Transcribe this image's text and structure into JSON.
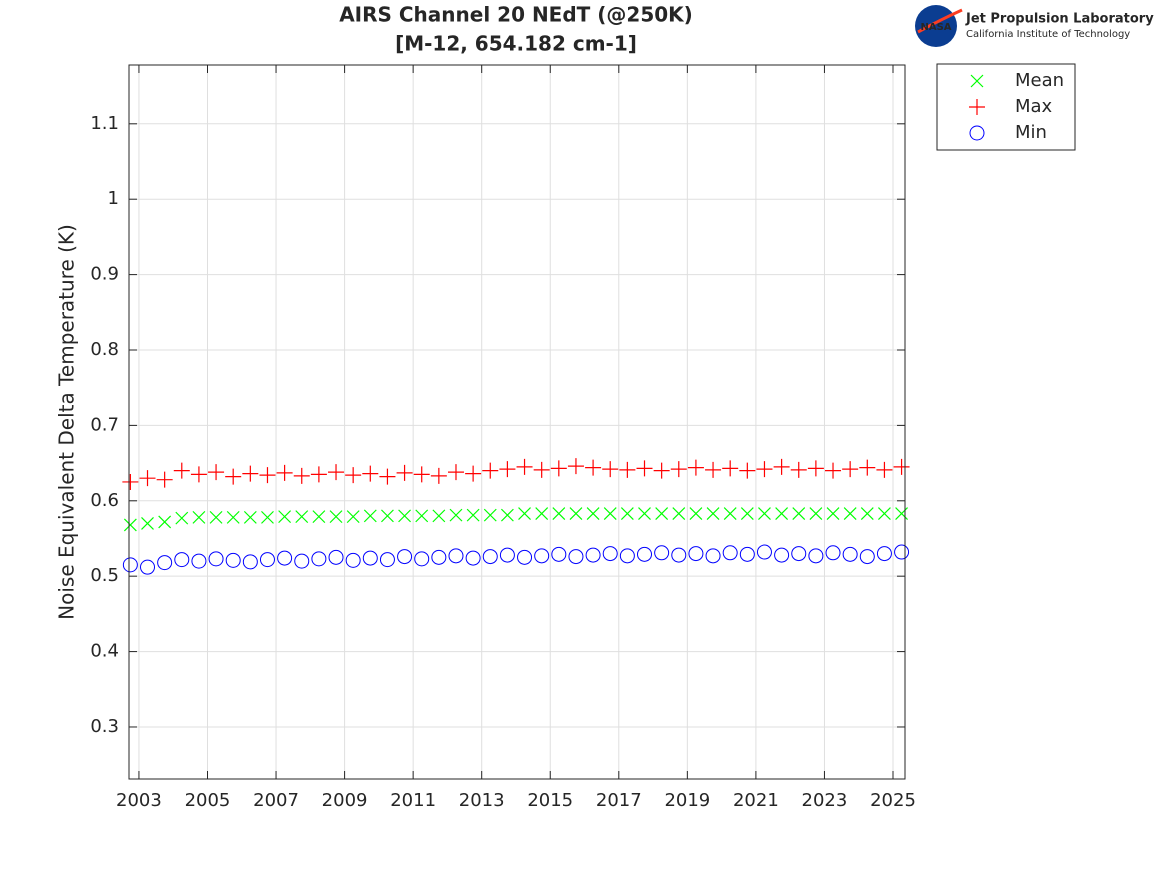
{
  "chart_data": {
    "type": "scatter",
    "title": "AIRS Channel 20 NEdT (@250K)",
    "subtitle": "[M-12, 654.182 cm-1]",
    "y_label": "Noise Equivalent Delta Temperature (K)",
    "x": [
      2002.75,
      2003.25,
      2003.75,
      2004.25,
      2004.75,
      2005.25,
      2005.75,
      2006.25,
      2006.75,
      2007.25,
      2007.75,
      2008.25,
      2008.75,
      2009.25,
      2009.75,
      2010.25,
      2010.75,
      2011.25,
      2011.75,
      2012.25,
      2012.75,
      2013.25,
      2013.75,
      2014.25,
      2014.75,
      2015.25,
      2015.75,
      2016.25,
      2016.75,
      2017.25,
      2017.75,
      2018.25,
      2018.75,
      2019.25,
      2019.75,
      2020.25,
      2020.75,
      2021.25,
      2021.75,
      2022.25,
      2022.75,
      2023.25,
      2023.75,
      2024.25,
      2024.75,
      2025.25
    ],
    "series": [
      {
        "name": "Mean",
        "color": "#00ff00",
        "marker": "x",
        "values": [
          0.568,
          0.57,
          0.572,
          0.577,
          0.578,
          0.578,
          0.578,
          0.578,
          0.578,
          0.579,
          0.579,
          0.579,
          0.579,
          0.579,
          0.58,
          0.58,
          0.58,
          0.58,
          0.58,
          0.581,
          0.581,
          0.581,
          0.581,
          0.583,
          0.583,
          0.583,
          0.583,
          0.583,
          0.583,
          0.583,
          0.583,
          0.583,
          0.583,
          0.583,
          0.583,
          0.583,
          0.583,
          0.583,
          0.583,
          0.583,
          0.583,
          0.583,
          0.583,
          0.583,
          0.583,
          0.583
        ]
      },
      {
        "name": "Max",
        "color": "#ff0000",
        "marker": "+",
        "values": [
          0.625,
          0.63,
          0.628,
          0.64,
          0.635,
          0.638,
          0.632,
          0.636,
          0.634,
          0.637,
          0.633,
          0.635,
          0.638,
          0.634,
          0.636,
          0.632,
          0.637,
          0.635,
          0.633,
          0.638,
          0.636,
          0.64,
          0.642,
          0.645,
          0.641,
          0.643,
          0.646,
          0.644,
          0.642,
          0.641,
          0.643,
          0.64,
          0.642,
          0.644,
          0.641,
          0.643,
          0.64,
          0.642,
          0.645,
          0.641,
          0.643,
          0.64,
          0.642,
          0.644,
          0.641,
          0.645
        ]
      },
      {
        "name": "Min",
        "color": "#0000ff",
        "marker": "o",
        "values": [
          0.515,
          0.512,
          0.518,
          0.522,
          0.52,
          0.523,
          0.521,
          0.519,
          0.522,
          0.524,
          0.52,
          0.523,
          0.525,
          0.521,
          0.524,
          0.522,
          0.526,
          0.523,
          0.525,
          0.527,
          0.524,
          0.526,
          0.528,
          0.525,
          0.527,
          0.529,
          0.526,
          0.528,
          0.53,
          0.527,
          0.529,
          0.531,
          0.528,
          0.53,
          0.527,
          0.531,
          0.529,
          0.532,
          0.528,
          0.53,
          0.527,
          0.531,
          0.529,
          0.526,
          0.53,
          0.532
        ]
      }
    ],
    "xlim": [
      2002.71,
      2025.35
    ],
    "xticks": [
      2003,
      2005,
      2007,
      2009,
      2011,
      2013,
      2015,
      2017,
      2019,
      2021,
      2023,
      2025
    ],
    "ylim": [
      0.231,
      1.178
    ],
    "yticks": [
      0.3,
      0.4,
      0.5,
      0.6,
      0.7,
      0.8,
      0.9,
      1,
      1.1
    ],
    "grid": true,
    "legend": "outside-top-right"
  },
  "logo": {
    "badge": "NASA",
    "name": "Jet Propulsion Laboratory",
    "subtitle": "California Institute of Technology"
  }
}
